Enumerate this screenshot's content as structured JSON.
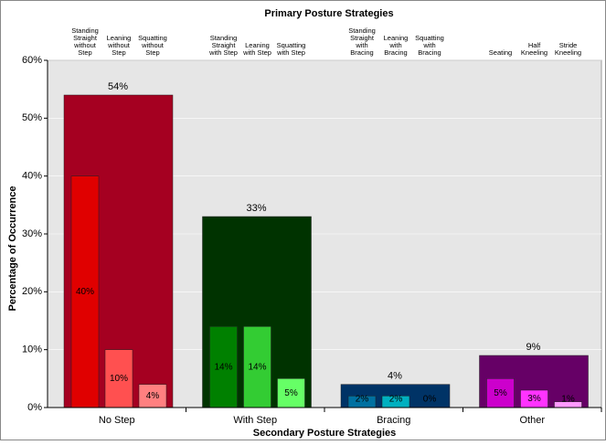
{
  "chart_data": {
    "type": "bar",
    "title": "Primary Posture Strategies",
    "x_label": "Secondary Posture Strategies",
    "y_label": "Percentage of Occurrence",
    "ylim": [
      0,
      60
    ],
    "yticks": [
      {
        "value": 0,
        "label": "0%"
      },
      {
        "value": 10,
        "label": "10%"
      },
      {
        "value": 20,
        "label": "20%"
      },
      {
        "value": 30,
        "label": "30%"
      },
      {
        "value": 40,
        "label": "40%"
      },
      {
        "value": 50,
        "label": "50%"
      },
      {
        "value": 60,
        "label": "60%"
      }
    ],
    "grid": true,
    "categories": [
      "No Step",
      "With Step",
      "Bracing",
      "Other"
    ],
    "values": [
      54,
      33,
      4,
      9
    ],
    "value_labels": [
      "54%",
      "33%",
      "4%",
      "9%"
    ],
    "colors": [
      "#a50021",
      "#003300",
      "#003366",
      "#660066"
    ],
    "subgroups": [
      {
        "labels": [
          [
            "Standing",
            "Straight",
            "without",
            "Step"
          ],
          [
            "Leaning",
            "without",
            "Step"
          ],
          [
            "Squatting",
            "without",
            "Step"
          ]
        ],
        "values": [
          40,
          10,
          4
        ],
        "value_labels": [
          "40%",
          "10%",
          "4%"
        ],
        "colors": [
          "#e00000",
          "#ff5050",
          "#ff8080"
        ]
      },
      {
        "labels": [
          [
            "Standing",
            "Straight",
            "with Step"
          ],
          [
            "Leaning",
            "with Step"
          ],
          [
            "Squatting",
            "with Step"
          ]
        ],
        "values": [
          14,
          14,
          5
        ],
        "value_labels": [
          "14%",
          "14%",
          "5%"
        ],
        "colors": [
          "#008000",
          "#33cc33",
          "#66ff66"
        ]
      },
      {
        "labels": [
          [
            "Standing",
            "Straight",
            "with",
            "Bracing"
          ],
          [
            "Leaning",
            "with",
            "Bracing"
          ],
          [
            "Squatting",
            "with",
            "Bracing"
          ]
        ],
        "values": [
          2,
          2,
          0
        ],
        "value_labels": [
          "2%",
          "2%",
          "0%"
        ],
        "colors": [
          "#0070a0",
          "#00b0c0",
          "#33cccc"
        ]
      },
      {
        "labels": [
          [
            "Seating"
          ],
          [
            "Half",
            "Kneeling"
          ],
          [
            "Stride",
            "Kneeling"
          ]
        ],
        "values": [
          5,
          3,
          1
        ],
        "value_labels": [
          "5%",
          "3%",
          "1%"
        ],
        "colors": [
          "#cc00cc",
          "#ff33ff",
          "#ff99ff"
        ]
      }
    ]
  }
}
